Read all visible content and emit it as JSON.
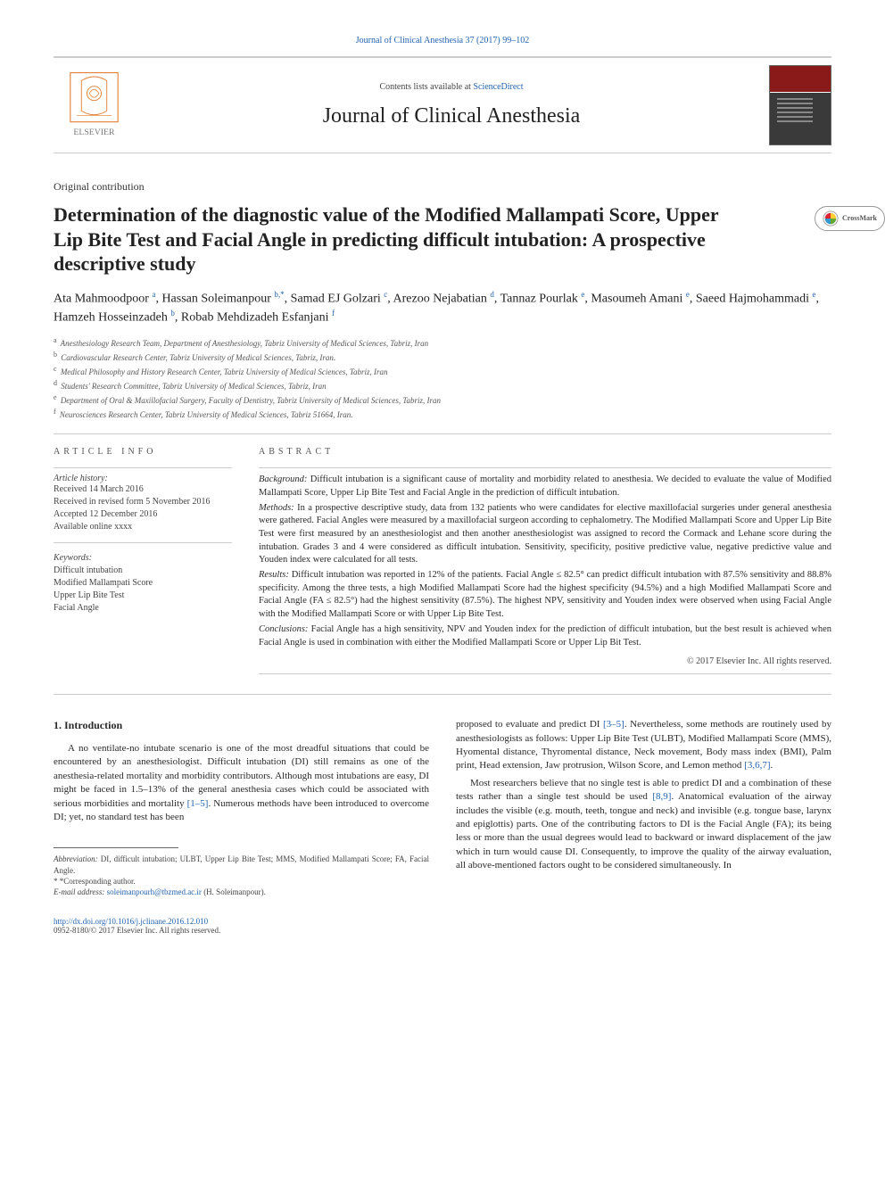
{
  "top_link": "Journal of Clinical Anesthesia 37 (2017) 99–102",
  "header": {
    "contents_text": "Contents lists available at ",
    "sciencedirect": "ScienceDirect",
    "journal_name": "Journal of Clinical Anesthesia"
  },
  "crossmark": "CrossMark",
  "article_type": "Original contribution",
  "title": "Determination of the diagnostic value of the Modified Mallampati Score, Upper Lip Bite Test and Facial Angle in predicting difficult intubation: A prospective descriptive study",
  "authors": [
    {
      "name": "Ata Mahmoodpoor ",
      "sup": "a"
    },
    {
      "name": ", Hassan Soleimanpour ",
      "sup": "b,*"
    },
    {
      "name": ", Samad EJ Golzari ",
      "sup": "c"
    },
    {
      "name": ", Arezoo Nejabatian ",
      "sup": "d"
    },
    {
      "name": ", Tannaz Pourlak ",
      "sup": "e"
    },
    {
      "name": ", Masoumeh Amani ",
      "sup": "e"
    },
    {
      "name": ", Saeed Hajmohammadi ",
      "sup": "e"
    },
    {
      "name": ", Hamzeh Hosseinzadeh ",
      "sup": "b"
    },
    {
      "name": ", Robab Mehdizadeh Esfanjani ",
      "sup": "f"
    }
  ],
  "affiliations": [
    {
      "letter": "a",
      "text": "Anesthesiology Research Team, Department of Anesthesiology, Tabriz University of Medical Sciences, Tabriz, Iran"
    },
    {
      "letter": "b",
      "text": "Cardiovascular Research Center, Tabriz University of Medical Sciences, Tabriz, Iran."
    },
    {
      "letter": "c",
      "text": "Medical Philosophy and History Research Center, Tabriz University of Medical Sciences, Tabriz, Iran"
    },
    {
      "letter": "d",
      "text": "Students' Research Committee, Tabriz University of Medical Sciences, Tabriz, Iran"
    },
    {
      "letter": "e",
      "text": "Department of Oral & Maxillofacial Surgery, Faculty of Dentistry, Tabriz University of Medical Sciences, Tabriz, Iran"
    },
    {
      "letter": "f",
      "text": "Neurosciences Research Center, Tabriz University of Medical Sciences, Tabriz 51664, Iran."
    }
  ],
  "article_info_head": "ARTICLE INFO",
  "abstract_head": "ABSTRACT",
  "article_history": {
    "label": "Article history:",
    "lines": [
      "Received 14 March 2016",
      "Received in revised form 5 November 2016",
      "Accepted 12 December 2016",
      "Available online xxxx"
    ]
  },
  "keywords": {
    "label": "Keywords:",
    "items": [
      "Difficult intubation",
      "Modified Mallampati Score",
      "Upper Lip Bite Test",
      "Facial Angle"
    ]
  },
  "abstract": {
    "background": {
      "label": "Background:",
      "text": " Difficult intubation is a significant cause of mortality and morbidity related to anesthesia. We decided to evaluate the value of Modified Mallampati Score, Upper Lip Bite Test and Facial Angle in the prediction of difficult intubation."
    },
    "methods": {
      "label": "Methods:",
      "text": " In a prospective descriptive study, data from 132 patients who were candidates for elective maxillofacial surgeries under general anesthesia were gathered. Facial Angles were measured by a maxillofacial surgeon according to cephalometry. The Modified Mallampati Score and Upper Lip Bite Test were first measured by an anesthesiologist and then another anesthesiologist was assigned to record the Cormack and Lehane score during the intubation. Grades 3 and 4 were considered as difficult intubation. Sensitivity, specificity, positive predictive value, negative predictive value and Youden index were calculated for all tests."
    },
    "results": {
      "label": "Results:",
      "text": " Difficult intubation was reported in 12% of the patients. Facial Angle ≤ 82.5° can predict difficult intubation with 87.5% sensitivity and 88.8% specificity. Among the three tests, a high Modified Mallampati Score had the highest specificity (94.5%) and a high Modified Mallampati Score and Facial Angle (FA ≤ 82.5°) had the highest sensitivity (87.5%). The highest NPV, sensitivity and Youden index were observed when using Facial Angle with the Modified Mallampati Score or with Upper Lip Bite Test."
    },
    "conclusions": {
      "label": "Conclusions:",
      "text": " Facial Angle has a high sensitivity, NPV and Youden index for the prediction of difficult intubation, but the best result is achieved when Facial Angle is used in combination with either the Modified Mallampati Score or Upper Lip Bit Test."
    }
  },
  "copyright": "© 2017 Elsevier Inc. All rights reserved.",
  "intro_head": "1. Introduction",
  "intro_p1a": "A no ventilate-no intubate scenario is one of the most dreadful situations that could be encountered by an anesthesiologist. Difficult intubation (DI) still remains as one of the anesthesia-related mortality and morbidity contributors. Although most intubations are easy, DI might be faced in 1.5–13% of the general anesthesia cases which could be associated with serious morbidities and mortality ",
  "intro_p1_ref1": "[1–5]",
  "intro_p1b": ". Numerous methods have been introduced to overcome DI; yet, no standard test has been",
  "intro_p2a": "proposed to evaluate and predict DI ",
  "intro_p2_ref1": "[3–5]",
  "intro_p2b": ". Nevertheless, some methods are routinely used by anesthesiologists as follows: Upper Lip Bite Test (ULBT), Modified Mallampati Score (MMS), Hyomental distance, Thyromental distance, Neck movement, Body mass index (BMI), Palm print, Head extension, Jaw protrusion, Wilson Score, and Lemon method ",
  "intro_p2_ref2": "[3,6,7]",
  "intro_p2c": ".",
  "intro_p3a": "Most researchers believe that no single test is able to predict DI and a combination of these tests rather than a single test should be used ",
  "intro_p3_ref1": "[8,9]",
  "intro_p3b": ". Anatomical evaluation of the airway includes the visible (e.g. mouth, teeth, tongue and neck) and invisible (e.g. tongue base, larynx and epiglottis) parts. One of the contributing factors to DI is the Facial Angle (FA); its being less or more than the usual degrees would lead to backward or inward displacement of the jaw which in turn would cause DI. Consequently, to improve the quality of the airway evaluation, all above-mentioned factors ought to be considered simultaneously. In",
  "footnotes": {
    "abbrev_label": "Abbreviation:",
    "abbrev_text": " DI, difficult intubation; ULBT, Upper Lip Bite Test; MMS, Modified Mallampati Score; FA, Facial Angle.",
    "corr": "*Corresponding author.",
    "email_label": "E-mail address: ",
    "email": "soleimanpourh@tbzmed.ac.ir",
    "email_who": " (H. Soleimanpour)."
  },
  "footer": {
    "doi": "http://dx.doi.org/10.1016/j.jclinane.2016.12.010",
    "issn": "0952-8180/© 2017 Elsevier Inc. All rights reserved."
  },
  "colors": {
    "link": "#2464b0",
    "text": "#2a2a2a",
    "rule": "#cccccc",
    "elsevier_orange": "#e17b2f",
    "elsevier_gray": "#7a7a7a"
  }
}
